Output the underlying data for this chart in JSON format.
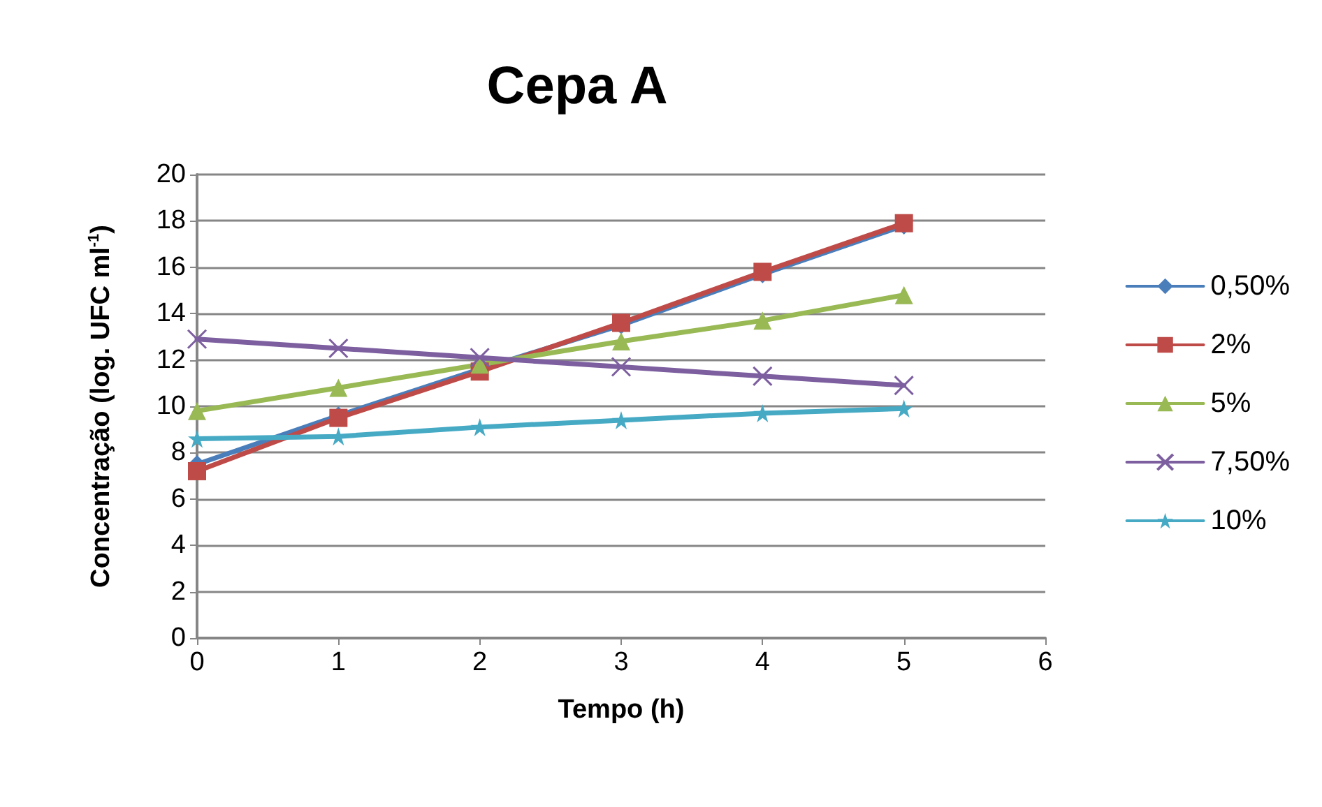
{
  "chart_data": {
    "type": "line",
    "title": "Cepa A",
    "xlabel": "Tempo (h)",
    "ylabel": "Concentração (log. UFC ml$^{-1}$)",
    "x": [
      0,
      1,
      2,
      3,
      4,
      5
    ],
    "xlim": [
      0,
      6
    ],
    "xticks": [
      0,
      1,
      2,
      3,
      4,
      5,
      6
    ],
    "ylim": [
      0,
      20
    ],
    "yticks": [
      0,
      2,
      4,
      6,
      8,
      10,
      12,
      14,
      16,
      18,
      20
    ],
    "grid": "y",
    "legend": "right",
    "line_style": "solid",
    "series": [
      {
        "name": "0,50%",
        "color": "#4a7ebb",
        "marker": "diamond",
        "values": [
          7.5,
          9.6,
          11.6,
          13.5,
          15.7,
          17.8
        ]
      },
      {
        "name": "2%",
        "color": "#be4b48",
        "marker": "square",
        "values": [
          7.2,
          9.5,
          11.5,
          13.6,
          15.8,
          17.9
        ]
      },
      {
        "name": "5%",
        "color": "#98b954",
        "marker": "triangle",
        "values": [
          9.8,
          10.8,
          11.8,
          12.8,
          13.7,
          14.8
        ]
      },
      {
        "name": "7,50%",
        "color": "#7d5fa0",
        "marker": "cross",
        "values": [
          12.9,
          12.5,
          12.1,
          11.7,
          11.3,
          10.9
        ]
      },
      {
        "name": "10%",
        "color": "#46aac5",
        "marker": "star",
        "values": [
          8.6,
          8.7,
          9.1,
          9.4,
          9.7,
          9.9
        ]
      }
    ]
  }
}
